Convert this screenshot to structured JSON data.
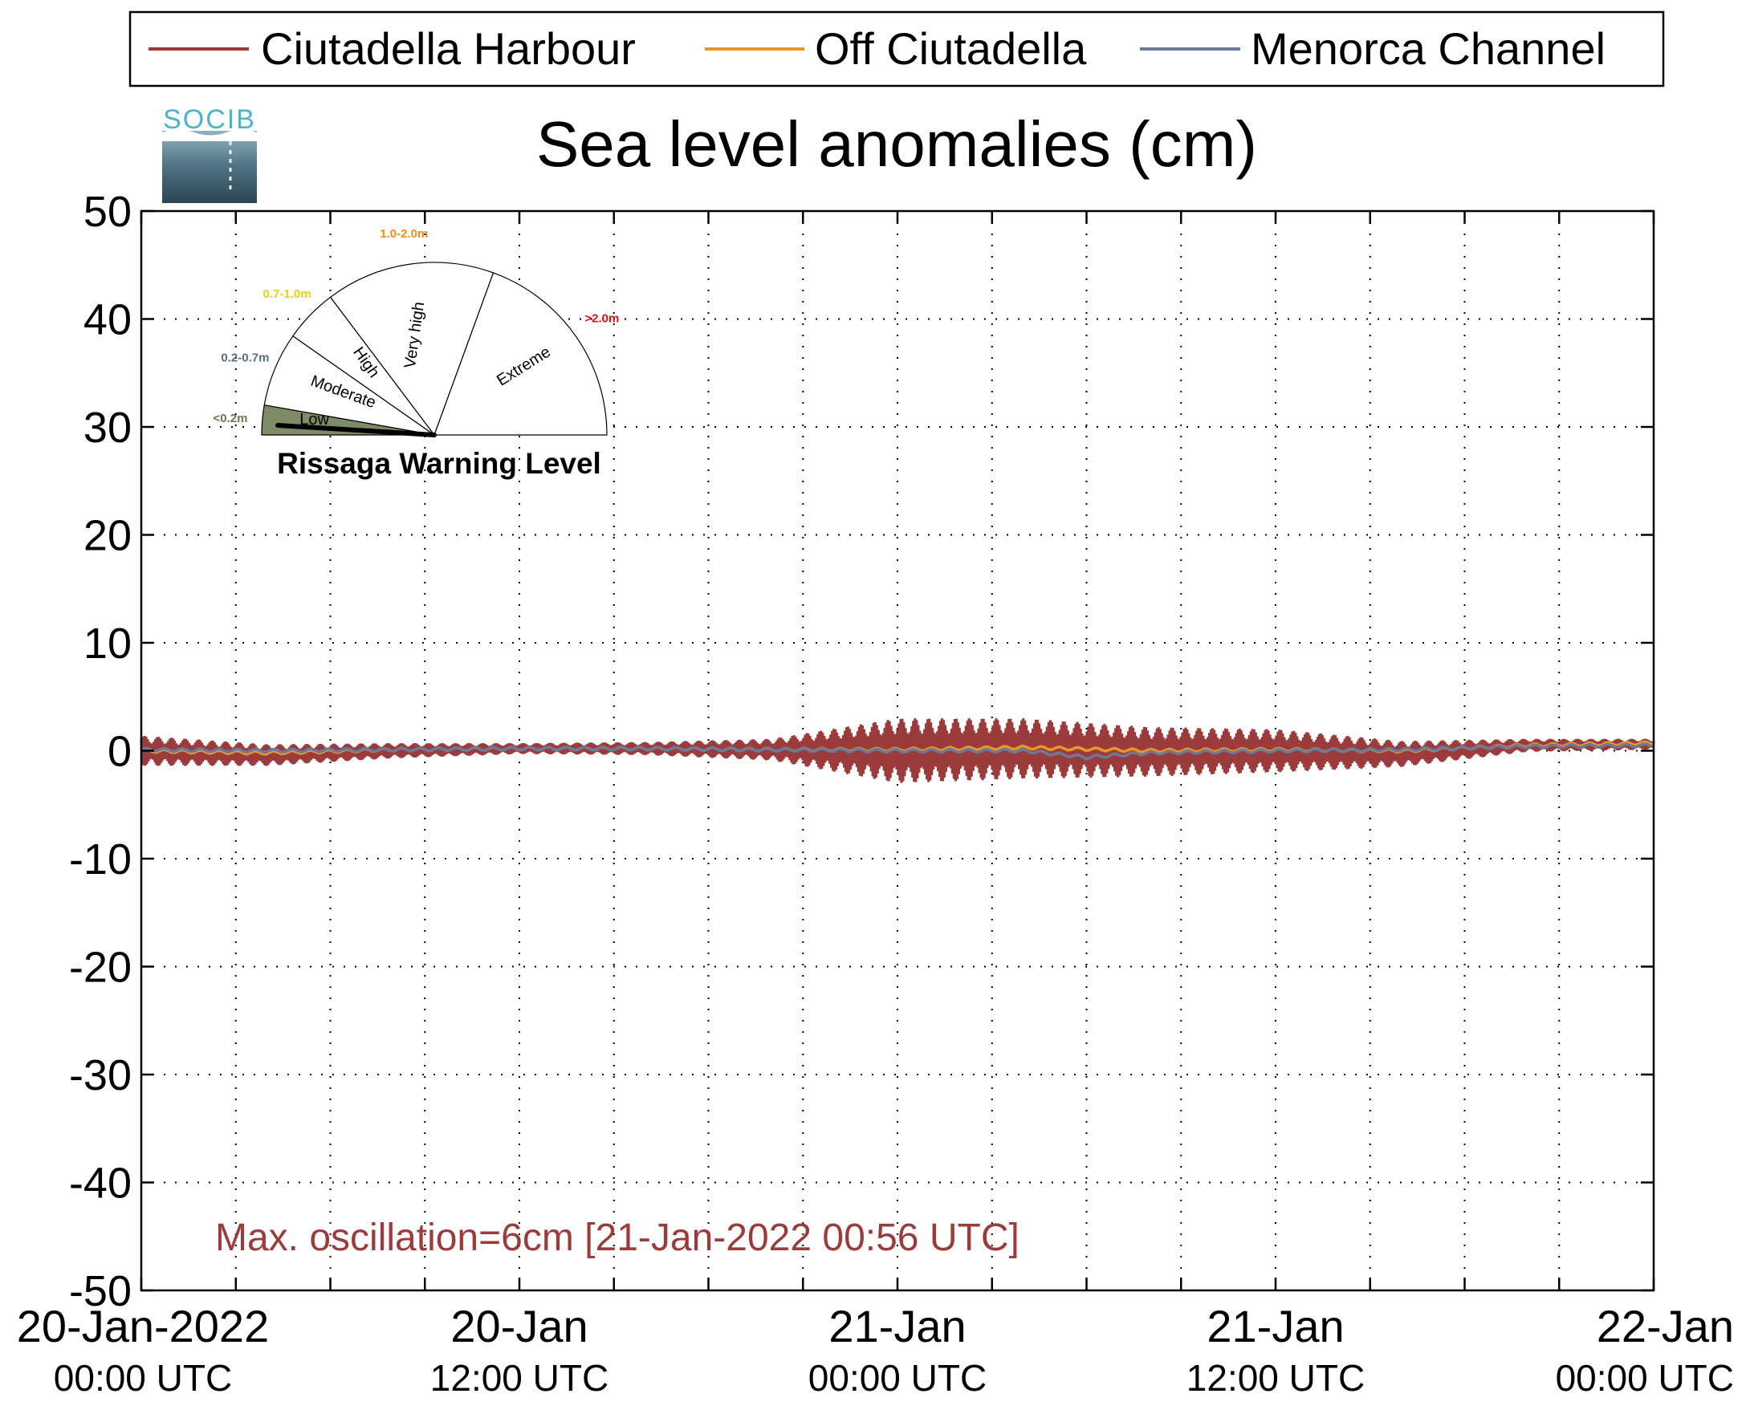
{
  "chart_data": {
    "type": "line",
    "title": "Sea level anomalies (cm)",
    "ylim": [
      -50,
      50
    ],
    "yticks": [
      50,
      40,
      30,
      20,
      10,
      0,
      -10,
      -20,
      -30,
      -40,
      -50
    ],
    "xlim_hours": [
      0,
      48
    ],
    "grid": true,
    "legend_position": "top",
    "xticks": [
      {
        "hour": 0,
        "date": "20-Jan-2022",
        "time": "00:00 UTC"
      },
      {
        "hour": 12,
        "date": "20-Jan",
        "time": "12:00 UTC"
      },
      {
        "hour": 24,
        "date": "21-Jan",
        "time": "00:00 UTC"
      },
      {
        "hour": 36,
        "date": "21-Jan",
        "time": "12:00 UTC"
      },
      {
        "hour": 48,
        "date": "22-Jan",
        "time": "00:00 UTC"
      }
    ],
    "series": [
      {
        "name": "Ciutadella Harbour",
        "color": "#9b3b3b",
        "mean_hours": [
          0,
          4,
          8,
          12,
          16,
          20,
          24,
          28,
          32,
          36,
          40,
          44,
          48
        ],
        "mean": [
          0.0,
          -0.4,
          0.0,
          0.2,
          0.2,
          0.1,
          0.0,
          0.2,
          -0.1,
          0.0,
          -0.3,
          0.5,
          0.6
        ],
        "oscillation_amplitude": [
          1.4,
          1.0,
          0.7,
          0.5,
          0.6,
          1.0,
          3.0,
          2.8,
          2.3,
          2.0,
          1.2,
          0.6,
          0.5
        ]
      },
      {
        "name": "Off Ciutadella",
        "color": "#e8952a",
        "mean_hours": [
          0,
          4,
          8,
          12,
          16,
          20,
          24,
          28,
          32,
          36,
          40,
          44,
          48
        ],
        "mean": [
          0.0,
          -0.2,
          0.1,
          0.2,
          0.2,
          0.1,
          0.1,
          0.3,
          0.0,
          0.1,
          0.0,
          0.5,
          0.7
        ]
      },
      {
        "name": "Menorca Channel",
        "color": "#6b7a99",
        "mean_hours": [
          0,
          4,
          8,
          12,
          16,
          20,
          24,
          28,
          30,
          32,
          36,
          40,
          44,
          48
        ],
        "mean": [
          0.1,
          0.0,
          0.1,
          0.2,
          0.2,
          0.1,
          0.0,
          0.0,
          -0.6,
          -0.2,
          0.0,
          0.1,
          0.4,
          0.5
        ]
      }
    ],
    "annotation": "Max. oscillation=6cm [21-Jan-2022 00:56 UTC]",
    "annotation_color": "#9b3b3b"
  },
  "logo": {
    "text": "SOCIB"
  },
  "gauge": {
    "title": "Rissaga Warning Level",
    "current_level": "Low",
    "levels": [
      {
        "label": "Low",
        "range": "<0.2m",
        "range_color": "#6b7a4e",
        "fill": "#7d8c66"
      },
      {
        "label": "Moderate",
        "range": "0.2-0.7m",
        "range_color": "#55707a",
        "fill": "#ffffff"
      },
      {
        "label": "High",
        "range": "0.7-1.0m",
        "range_color": "#e5d21a",
        "fill": "#ffffff"
      },
      {
        "label": "Very high",
        "range": "1.0-2.0m",
        "range_color": "#f08a1a",
        "fill": "#ffffff"
      },
      {
        "label": "Extreme",
        "range": ">2.0m",
        "range_color": "#e01010",
        "fill": "#ffffff"
      }
    ]
  }
}
